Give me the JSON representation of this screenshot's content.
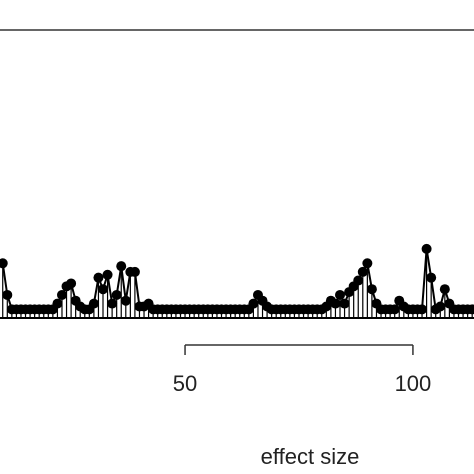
{
  "chart_data": {
    "type": "stem",
    "x_label": "effect size",
    "x": [
      10,
      11,
      12,
      13,
      14,
      15,
      16,
      17,
      18,
      19,
      20,
      21,
      22,
      23,
      24,
      25,
      26,
      27,
      28,
      29,
      30,
      31,
      32,
      33,
      34,
      35,
      36,
      37,
      38,
      39,
      40,
      41,
      42,
      43,
      44,
      45,
      46,
      47,
      48,
      49,
      50,
      51,
      52,
      53,
      54,
      55,
      56,
      57,
      58,
      59,
      60,
      61,
      62,
      63,
      64,
      65,
      66,
      67,
      68,
      69,
      70,
      71,
      72,
      73,
      74,
      75,
      76,
      77,
      78,
      79,
      80,
      81,
      82,
      83,
      84,
      85,
      86,
      87,
      88,
      89,
      90,
      91,
      92,
      93,
      94,
      95,
      96,
      97,
      98,
      99,
      100,
      101,
      102,
      103,
      104,
      105,
      106,
      107,
      108,
      109,
      110,
      111,
      112,
      113
    ],
    "values": [
      0.19,
      0.08,
      0.03,
      0.03,
      0.03,
      0.03,
      0.03,
      0.03,
      0.03,
      0.03,
      0.03,
      0.03,
      0.05,
      0.08,
      0.11,
      0.12,
      0.06,
      0.04,
      0.03,
      0.03,
      0.05,
      0.14,
      0.1,
      0.15,
      0.05,
      0.08,
      0.18,
      0.06,
      0.16,
      0.16,
      0.04,
      0.04,
      0.05,
      0.03,
      0.03,
      0.03,
      0.03,
      0.03,
      0.03,
      0.03,
      0.03,
      0.03,
      0.03,
      0.03,
      0.03,
      0.03,
      0.03,
      0.03,
      0.03,
      0.03,
      0.03,
      0.03,
      0.03,
      0.03,
      0.03,
      0.05,
      0.08,
      0.06,
      0.04,
      0.03,
      0.03,
      0.03,
      0.03,
      0.03,
      0.03,
      0.03,
      0.03,
      0.03,
      0.03,
      0.03,
      0.03,
      0.04,
      0.06,
      0.05,
      0.08,
      0.05,
      0.09,
      0.11,
      0.13,
      0.16,
      0.19,
      0.1,
      0.05,
      0.03,
      0.03,
      0.03,
      0.03,
      0.06,
      0.04,
      0.03,
      0.03,
      0.03,
      0.03,
      0.24,
      0.14,
      0.03,
      0.04,
      0.1,
      0.05,
      0.03,
      0.03,
      0.03,
      0.03,
      0.03
    ],
    "color": "#000000",
    "xlim": [
      9.4,
      113.4
    ],
    "xticks": [
      50,
      100
    ],
    "ylim": [
      0,
      1
    ]
  }
}
